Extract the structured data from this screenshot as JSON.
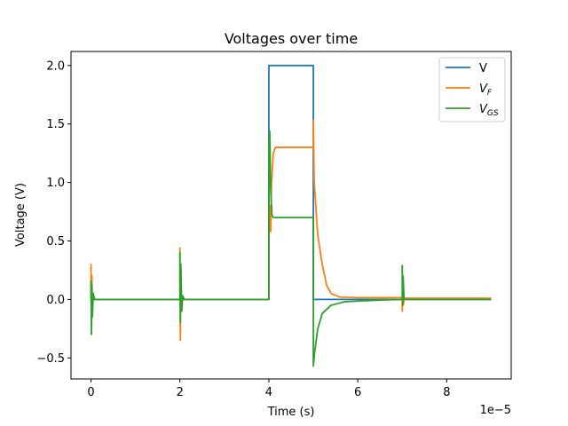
{
  "chart_data": {
    "type": "line",
    "title": "Voltages over time",
    "xlabel": "Time (s)",
    "ylabel": "Voltage (V)",
    "x_offset_text": "1e−5",
    "xlim": [
      -0.45,
      9.45
    ],
    "ylim": [
      -0.68,
      2.12
    ],
    "x_ticks": [
      0,
      2,
      4,
      6,
      8
    ],
    "x_tick_labels": [
      "0",
      "2",
      "4",
      "6",
      "8"
    ],
    "y_ticks": [
      -0.5,
      0.0,
      0.5,
      1.0,
      1.5,
      2.0
    ],
    "y_tick_labels": [
      "−0.5",
      "0.0",
      "0.5",
      "1.0",
      "1.5",
      "2.0"
    ],
    "grid": false,
    "legend_position": "top-right",
    "series": [
      {
        "name": "V",
        "legend_label": "V",
        "legend_sub": "",
        "color": "#1f77b4",
        "points": [
          [
            0,
            0.0
          ],
          [
            4.0,
            0.0
          ],
          [
            4.0,
            2.0
          ],
          [
            5.0,
            2.0
          ],
          [
            5.0,
            0.0
          ],
          [
            9.0,
            0.0
          ]
        ]
      },
      {
        "name": "V_F",
        "legend_label": "V",
        "legend_sub": "F",
        "color": "#ff7f0e",
        "points": [
          [
            0,
            0.0
          ],
          [
            0.0,
            0.3
          ],
          [
            0.01,
            -0.22
          ],
          [
            0.02,
            0.2
          ],
          [
            0.03,
            -0.1
          ],
          [
            0.05,
            0.05
          ],
          [
            0.08,
            0.0
          ],
          [
            2.0,
            0.0
          ],
          [
            2.0,
            0.44
          ],
          [
            2.01,
            -0.35
          ],
          [
            2.02,
            0.25
          ],
          [
            2.04,
            -0.1
          ],
          [
            2.06,
            0.03
          ],
          [
            2.1,
            0.0
          ],
          [
            4.0,
            0.0
          ],
          [
            4.0,
            0.6
          ],
          [
            4.02,
            0.8
          ],
          [
            4.04,
            0.58
          ],
          [
            4.06,
            1.0
          ],
          [
            4.1,
            1.25
          ],
          [
            4.15,
            1.3
          ],
          [
            5.0,
            1.3
          ],
          [
            5.0,
            1.53
          ],
          [
            5.02,
            1.0
          ],
          [
            5.1,
            0.55
          ],
          [
            5.2,
            0.3
          ],
          [
            5.3,
            0.12
          ],
          [
            5.4,
            0.05
          ],
          [
            5.6,
            0.02
          ],
          [
            6.0,
            0.015
          ],
          [
            7.0,
            0.015
          ],
          [
            7.0,
            -0.1
          ],
          [
            7.01,
            0.12
          ],
          [
            7.02,
            -0.05
          ],
          [
            7.05,
            0.01
          ],
          [
            9.0,
            0.01
          ]
        ]
      },
      {
        "name": "V_GS",
        "legend_label": "V",
        "legend_sub": "GS",
        "color": "#2ca02c",
        "points": [
          [
            0,
            0.0
          ],
          [
            0.0,
            0.16
          ],
          [
            0.01,
            -0.3
          ],
          [
            0.02,
            0.12
          ],
          [
            0.03,
            -0.15
          ],
          [
            0.05,
            0.05
          ],
          [
            0.08,
            0.0
          ],
          [
            2.0,
            0.0
          ],
          [
            2.0,
            0.4
          ],
          [
            2.01,
            -0.2
          ],
          [
            2.02,
            0.3
          ],
          [
            2.04,
            -0.1
          ],
          [
            2.06,
            0.03
          ],
          [
            2.1,
            0.0
          ],
          [
            4.0,
            0.0
          ],
          [
            4.0,
            1.3
          ],
          [
            4.02,
            1.44
          ],
          [
            4.04,
            0.95
          ],
          [
            4.07,
            0.72
          ],
          [
            4.1,
            0.7
          ],
          [
            5.0,
            0.7
          ],
          [
            5.0,
            -0.57
          ],
          [
            5.03,
            -0.45
          ],
          [
            5.1,
            -0.25
          ],
          [
            5.2,
            -0.12
          ],
          [
            5.4,
            -0.05
          ],
          [
            5.7,
            -0.02
          ],
          [
            6.5,
            -0.005
          ],
          [
            7.0,
            0.0
          ],
          [
            7.0,
            0.29
          ],
          [
            7.01,
            -0.05
          ],
          [
            7.02,
            0.2
          ],
          [
            7.04,
            0.0
          ],
          [
            9.0,
            0.0
          ]
        ]
      }
    ]
  }
}
